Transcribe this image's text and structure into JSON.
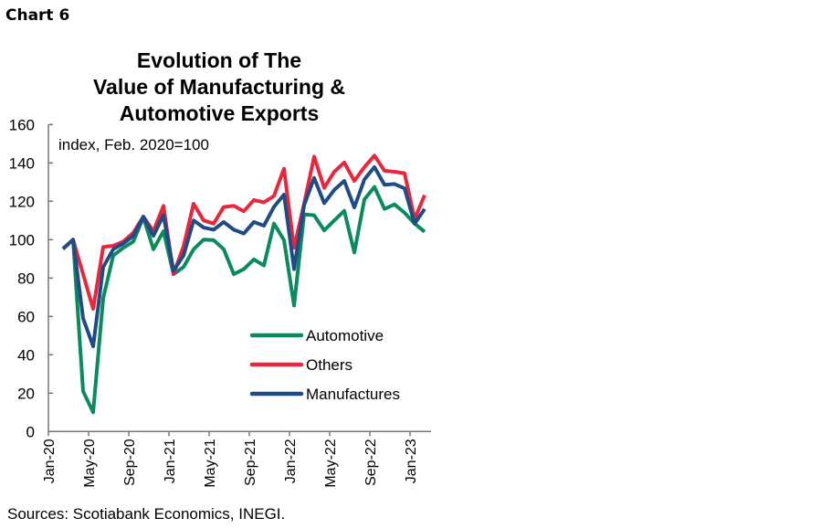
{
  "header": {
    "chart_label": "Chart 6"
  },
  "footer": {
    "sources": "Sources: Scotiabank Economics, INEGI."
  },
  "chart_data": {
    "type": "line",
    "title_lines": [
      "Evolution of The",
      "Value of Manufacturing &",
      "Automotive Exports"
    ],
    "subtitle": "index, Feb. 2020=100",
    "xlabel": "",
    "ylabel": "",
    "ylim": [
      0,
      160
    ],
    "yticks": [
      0,
      20,
      40,
      60,
      80,
      100,
      120,
      140,
      160
    ],
    "xtick_labels": [
      "Jan-20",
      "May-20",
      "Sep-20",
      "Jan-21",
      "May-21",
      "Sep-21",
      "Jan-22",
      "May-22",
      "Sep-22",
      "Jan-23"
    ],
    "grid": false,
    "legend_position": "lower-right",
    "x": [
      "Jan-20",
      "Feb-20",
      "Mar-20",
      "Apr-20",
      "May-20",
      "Jun-20",
      "Jul-20",
      "Aug-20",
      "Sep-20",
      "Oct-20",
      "Nov-20",
      "Dec-20",
      "Jan-21",
      "Feb-21",
      "Mar-21",
      "Apr-21",
      "May-21",
      "Jun-21",
      "Jul-21",
      "Aug-21",
      "Sep-21",
      "Oct-21",
      "Nov-21",
      "Dec-21",
      "Jan-22",
      "Feb-22",
      "Mar-22",
      "Apr-22",
      "May-22",
      "Jun-22",
      "Jul-22",
      "Aug-22",
      "Sep-22",
      "Oct-22",
      "Nov-22",
      "Dec-22",
      "Jan-23"
    ],
    "series": [
      {
        "name": "Automotive",
        "color": "#0b8a5c",
        "values": [
          95.2,
          100,
          21,
          10,
          69.5,
          91.7,
          95.7,
          99,
          111.6,
          95,
          104.4,
          82,
          85.7,
          95,
          100,
          99.7,
          95,
          82,
          84.6,
          89.7,
          86.5,
          108.4,
          99.7,
          65.6,
          113.2,
          112.7,
          104.8,
          110,
          115,
          93.3,
          121,
          127.5,
          116,
          118.4,
          114,
          108.4,
          104.1
        ]
      },
      {
        "name": "Others",
        "color": "#e8263c",
        "values": [
          95.2,
          100,
          82,
          64,
          96.2,
          96.8,
          99,
          103.6,
          112,
          104.4,
          117.6,
          82,
          96.5,
          118.7,
          110,
          108.4,
          117,
          117.6,
          114.8,
          120.6,
          119.5,
          122.7,
          137,
          95.7,
          118.7,
          143.3,
          127,
          135.4,
          140.2,
          130.6,
          137.8,
          143.8,
          135.9,
          135.4,
          134.6,
          110.8,
          123.2
        ]
      },
      {
        "name": "Manufactures",
        "color": "#1f4c86",
        "values": [
          95.2,
          100,
          59,
          44.4,
          85.7,
          95,
          98,
          102,
          112,
          102,
          112.7,
          83.8,
          91.7,
          110,
          106.3,
          105.2,
          109.2,
          105.2,
          103.2,
          109.2,
          107.3,
          117.1,
          123.5,
          84.6,
          117.9,
          132.2,
          119,
          125.9,
          130.6,
          116.8,
          131.4,
          137.8,
          128.6,
          129,
          126.7,
          108.4,
          116
        ]
      }
    ]
  }
}
